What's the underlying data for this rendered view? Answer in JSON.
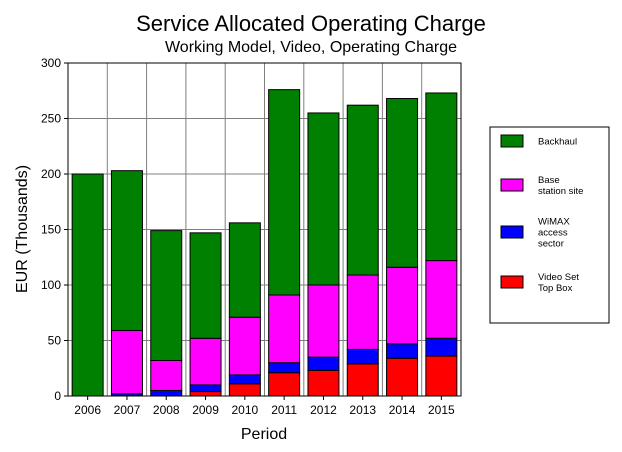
{
  "chart_data": {
    "type": "bar",
    "stacked": true,
    "title": "Service Allocated Operating Charge",
    "subtitle": "Working Model, Video, Operating Charge",
    "xlabel": "Period",
    "ylabel": "EUR (Thousands)",
    "ylim": [
      0,
      300
    ],
    "yticks": [
      0,
      50,
      100,
      150,
      200,
      250,
      300
    ],
    "grid": true,
    "legend_position": "right",
    "categories": [
      "2006",
      "2007",
      "2008",
      "2009",
      "2010",
      "2011",
      "2012",
      "2013",
      "2014",
      "2015"
    ],
    "series": [
      {
        "name": "Video Set Top Box",
        "legend_lines": [
          "Video Set",
          "Top Box"
        ],
        "color": "#ff0000",
        "values": [
          0,
          0,
          0,
          4,
          11,
          21,
          23,
          29,
          34,
          36
        ]
      },
      {
        "name": "WiMAX access sector",
        "legend_lines": [
          "WiMAX",
          "access",
          "sector"
        ],
        "color": "#0000ff",
        "values": [
          0,
          2,
          5,
          6,
          8,
          9,
          12,
          13,
          13,
          16
        ]
      },
      {
        "name": "Base station site",
        "legend_lines": [
          "Base",
          "station site"
        ],
        "color": "#ff00ff",
        "values": [
          0,
          57,
          27,
          42,
          52,
          61,
          65,
          67,
          69,
          70
        ]
      },
      {
        "name": "Backhaul",
        "legend_lines": [
          "Backhaul"
        ],
        "color": "#008000",
        "values": [
          200,
          144,
          117,
          95,
          85,
          185,
          155,
          153,
          152,
          151
        ]
      }
    ]
  }
}
